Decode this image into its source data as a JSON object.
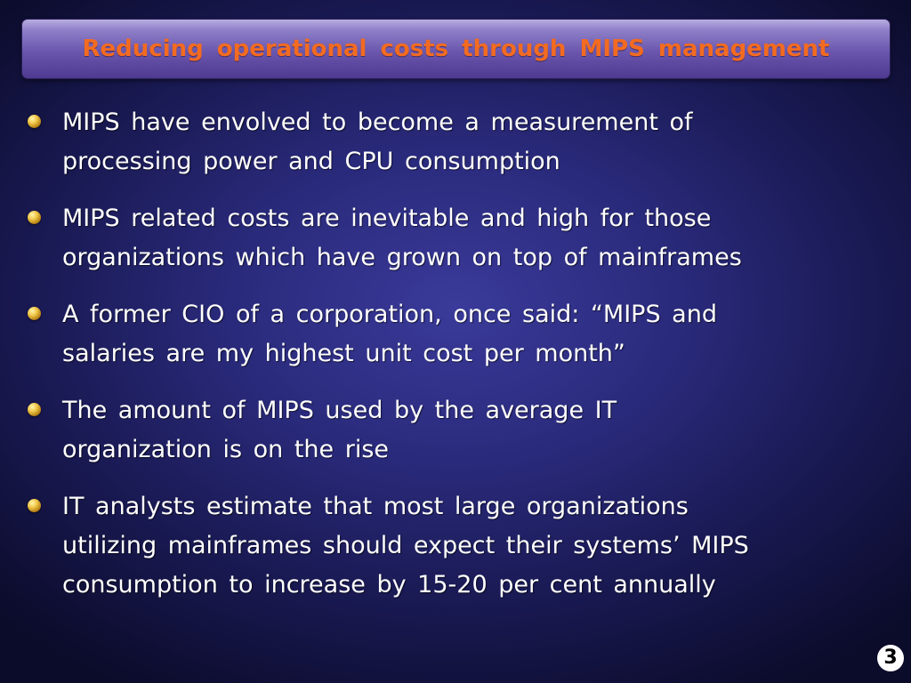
{
  "slide": {
    "title": "Reducing  operational  costs  through  MIPS  management",
    "bullets": [
      {
        "text": "MIPS  have  envolved  to  become  a  measurement  of\nprocessing  power  and  CPU  consumption"
      },
      {
        "text": "MIPS  related  costs  are  inevitable  and  high  for  those\norganizations  which  have  grown  on  top of mainframes"
      },
      {
        "text": "A  former  CIO  of  a  corporation,  once  said:  “MIPS  and\nsalaries  are  my  highest  unit  cost  per  month”"
      },
      {
        "text": "The  amount  of  MIPS  used  by  the  average  IT\norganization  is  on  the  rise"
      },
      {
        "text": "IT  analysts  estimate  that  most  large  organizations\nutilizing  mainframes  should  expect  their  systems’ MIPS\nconsumption  to  increase  by  15-20  per  cent  annually"
      }
    ],
    "page_number": "3"
  },
  "colors": {
    "title_text": "#f26b21",
    "title_bar": "#6a56ad",
    "background": "#2a2a7c",
    "bullet": "#f2c94c"
  },
  "icons": {
    "bullet": "gold-sphere-bullet-icon"
  }
}
